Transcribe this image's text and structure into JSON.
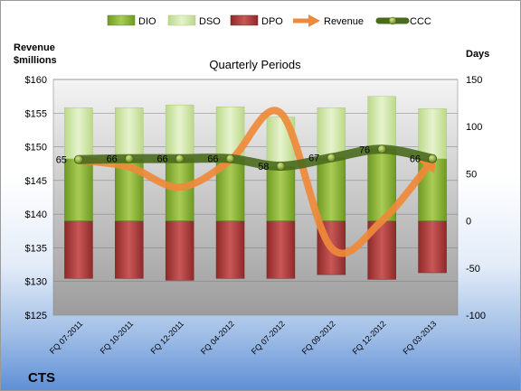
{
  "chart_data": {
    "type": "bar",
    "title": "Quarterly Periods",
    "company": "CTS",
    "y_left_label": [
      "Revenue",
      "$millions"
    ],
    "y_right_label": "Days",
    "categories": [
      "FQ 07-2011",
      "FQ 10-2011",
      "FQ 12-2011",
      "FQ 04-2012",
      "FQ 07-2012",
      "FQ 09-2012",
      "FQ 12-2012",
      "FQ 03-2013"
    ],
    "y_left_ticks": [
      "$125",
      "$130",
      "$135",
      "$140",
      "$145",
      "$150",
      "$155",
      "$160"
    ],
    "y_left_range": [
      125,
      160
    ],
    "y_right_ticks": [
      "-100",
      "-50",
      "0",
      "50",
      "100",
      "150"
    ],
    "y_right_range": [
      -100,
      150
    ],
    "legend_position": "top",
    "series": [
      {
        "name": "DIO",
        "kind": "bar",
        "axis": "right",
        "color": "#8db03a",
        "values": [
          66,
          66,
          67,
          67,
          58,
          67,
          77,
          66
        ]
      },
      {
        "name": "DSO",
        "kind": "bar",
        "axis": "right",
        "color": "#cfe6a4",
        "values": [
          54,
          54,
          56,
          54,
          52,
          53,
          55,
          53
        ]
      },
      {
        "name": "DPO",
        "kind": "bar",
        "axis": "right",
        "color": "#a93a3a",
        "values": [
          -61,
          -61,
          -63,
          -61,
          -61,
          -57,
          -62,
          -55
        ]
      },
      {
        "name": "Revenue",
        "kind": "line",
        "axis": "left",
        "color": "#ef8a3a",
        "values": [
          148,
          147,
          144,
          148,
          155,
          135,
          139,
          148
        ]
      },
      {
        "name": "CCC",
        "kind": "line",
        "axis": "right",
        "color": "#5b7d2a",
        "values": [
          65,
          66,
          66,
          66,
          58,
          67,
          76,
          66
        ],
        "data_labels": [
          "65",
          "66",
          "66",
          "66",
          "58",
          "67",
          "76",
          "66"
        ]
      }
    ]
  }
}
